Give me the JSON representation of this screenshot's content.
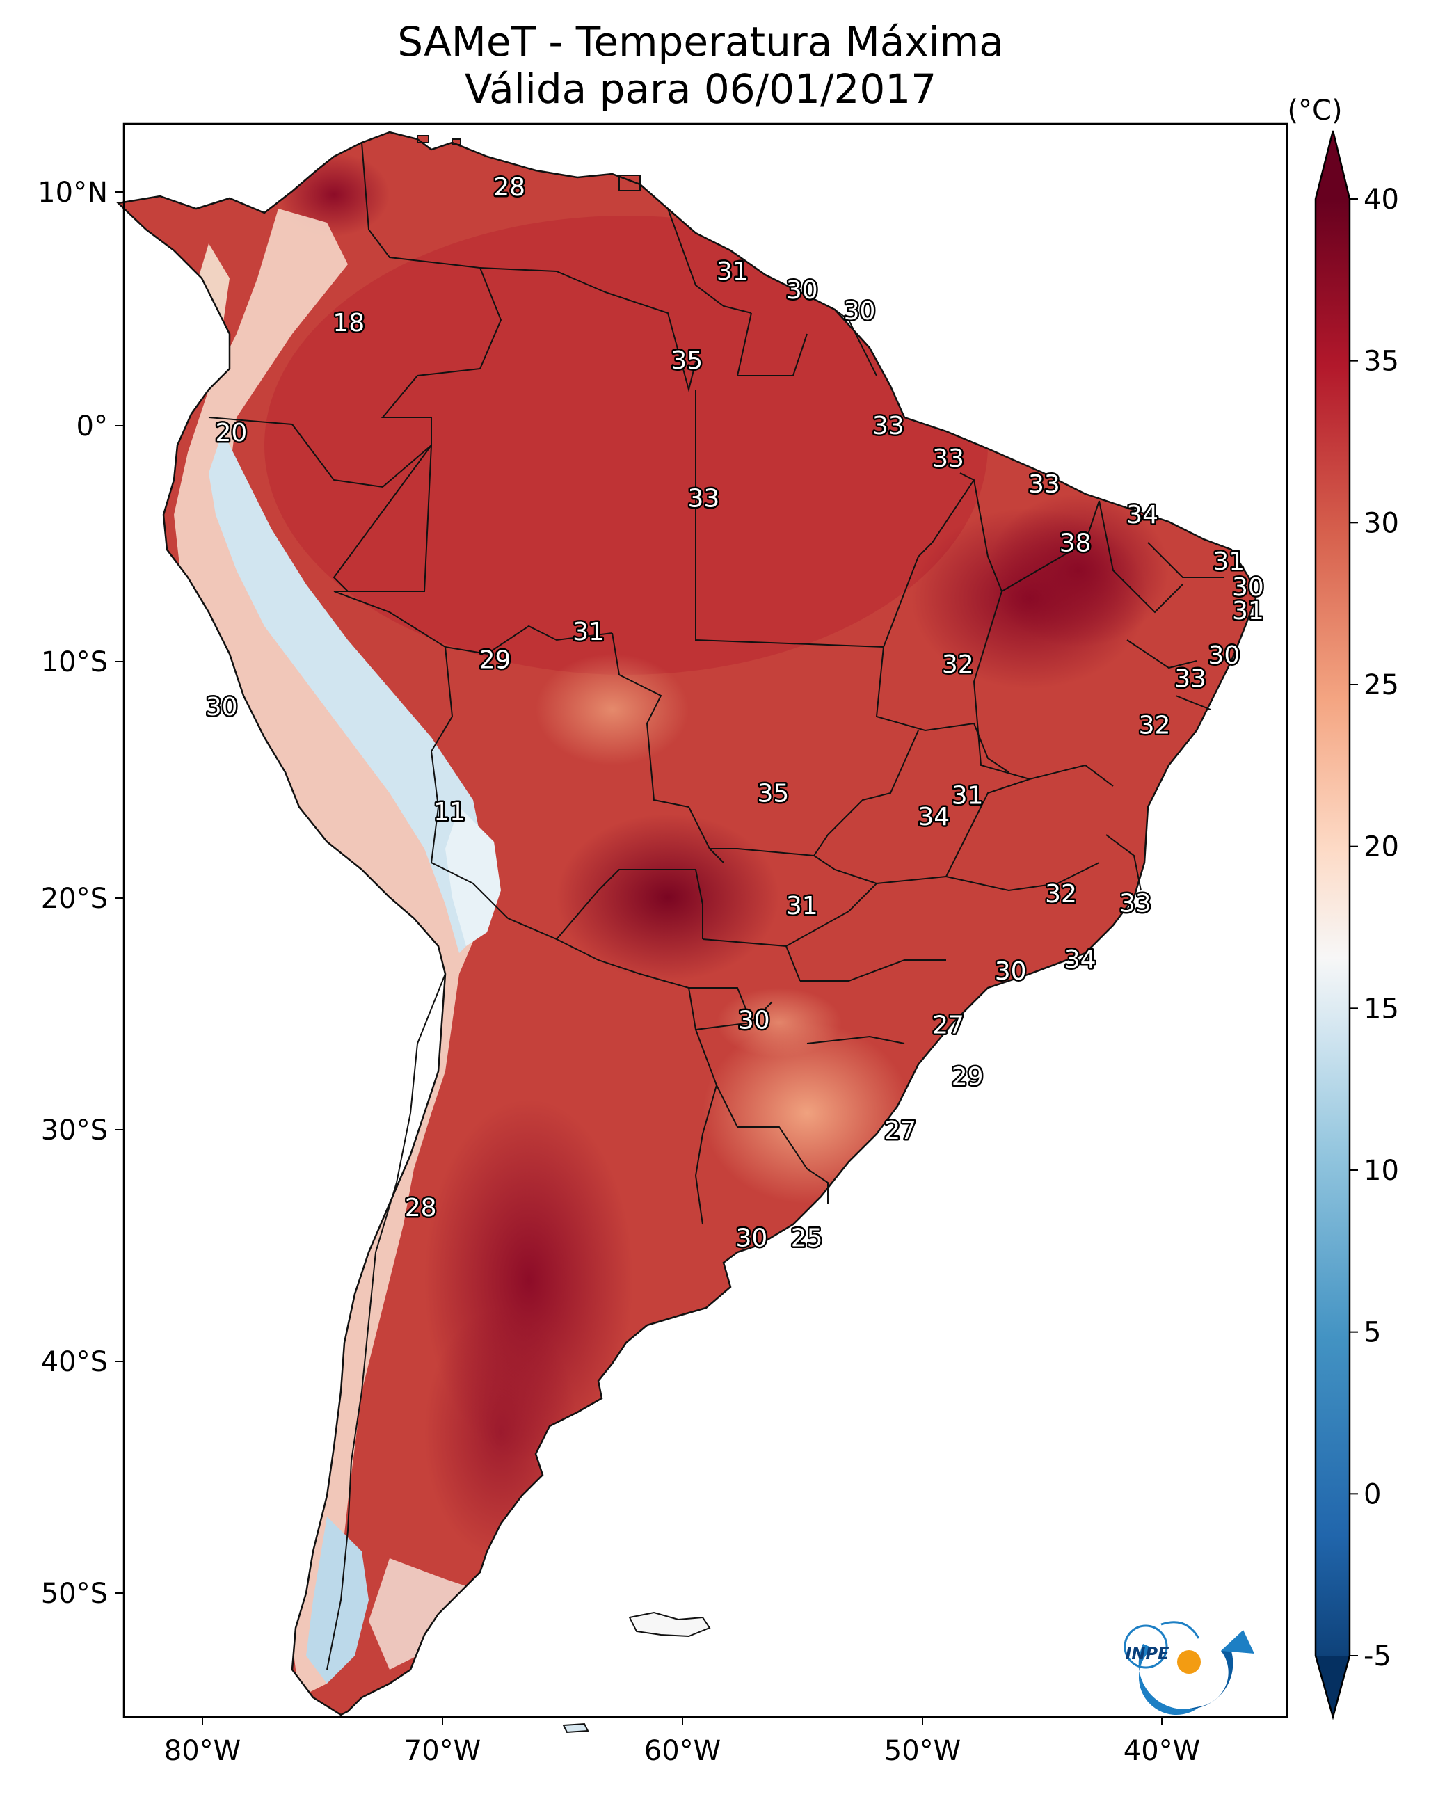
{
  "title": {
    "line1": "SAMeT - Temperatura Máxima",
    "line2": "Válida para 06/01/2017"
  },
  "axes": {
    "lon_ticks": [
      "80°W",
      "70°W",
      "60°W",
      "50°W",
      "40°W"
    ],
    "lat_ticks": [
      "10°N",
      "0°",
      "10°S",
      "20°S",
      "30°S",
      "40°S",
      "50°S"
    ]
  },
  "colorbar": {
    "unit": "(°C)",
    "ticks": [
      "40",
      "35",
      "30",
      "25",
      "20",
      "15",
      "10",
      "5",
      "0",
      "-5"
    ],
    "range": [
      -5,
      40
    ],
    "colors": {
      "hot": "#67001f",
      "warm": "#d6604d",
      "mild": "#f4a582",
      "neutral": "#f7f7f7",
      "cool": "#92c5de",
      "cold": "#2166ac",
      "cold_end": "#053061"
    }
  },
  "logo": {
    "text": "INPE",
    "icon": "inpe-logo-icon"
  },
  "temperature_labels": [
    {
      "value": "28",
      "lon": -67.2,
      "lat": 10.2
    },
    {
      "value": "31",
      "lon": -57.9,
      "lat": 6.6
    },
    {
      "value": "30",
      "lon": -55.0,
      "lat": 5.8
    },
    {
      "value": "30",
      "lon": -52.6,
      "lat": 4.9
    },
    {
      "value": "18",
      "lon": -73.9,
      "lat": 4.4
    },
    {
      "value": "35",
      "lon": -59.8,
      "lat": 2.8
    },
    {
      "value": "20",
      "lon": -78.8,
      "lat": -0.3
    },
    {
      "value": "33",
      "lon": -51.4,
      "lat": 0.0
    },
    {
      "value": "33",
      "lon": -48.9,
      "lat": -1.4
    },
    {
      "value": "33",
      "lon": -44.9,
      "lat": -2.5
    },
    {
      "value": "34",
      "lon": -40.8,
      "lat": -3.8
    },
    {
      "value": "33",
      "lon": -59.1,
      "lat": -3.1
    },
    {
      "value": "38",
      "lon": -43.6,
      "lat": -5.0
    },
    {
      "value": "31",
      "lon": -37.2,
      "lat": -5.8
    },
    {
      "value": "30",
      "lon": -36.4,
      "lat": -6.9
    },
    {
      "value": "31",
      "lon": -36.4,
      "lat": -7.9
    },
    {
      "value": "31",
      "lon": -63.9,
      "lat": -8.8
    },
    {
      "value": "29",
      "lon": -67.8,
      "lat": -10.0
    },
    {
      "value": "32",
      "lon": -48.5,
      "lat": -10.2
    },
    {
      "value": "30",
      "lon": -37.4,
      "lat": -9.8
    },
    {
      "value": "33",
      "lon": -38.8,
      "lat": -10.8
    },
    {
      "value": "30",
      "lon": -79.2,
      "lat": -12.0
    },
    {
      "value": "32",
      "lon": -40.3,
      "lat": -12.8
    },
    {
      "value": "35",
      "lon": -56.2,
      "lat": -15.7
    },
    {
      "value": "31",
      "lon": -48.1,
      "lat": -15.8
    },
    {
      "value": "34",
      "lon": -49.5,
      "lat": -16.7
    },
    {
      "value": "11",
      "lon": -69.7,
      "lat": -16.5
    },
    {
      "value": "32",
      "lon": -44.2,
      "lat": -20.0
    },
    {
      "value": "33",
      "lon": -41.1,
      "lat": -20.4
    },
    {
      "value": "31",
      "lon": -55.0,
      "lat": -20.5
    },
    {
      "value": "34",
      "lon": -43.4,
      "lat": -22.8
    },
    {
      "value": "30",
      "lon": -46.3,
      "lat": -23.3
    },
    {
      "value": "27",
      "lon": -48.9,
      "lat": -25.6
    },
    {
      "value": "30",
      "lon": -57.0,
      "lat": -25.4
    },
    {
      "value": "29",
      "lon": -48.1,
      "lat": -27.8
    },
    {
      "value": "27",
      "lon": -50.9,
      "lat": -30.1
    },
    {
      "value": "28",
      "lon": -70.9,
      "lat": -33.4
    },
    {
      "value": "30",
      "lon": -57.1,
      "lat": -34.7
    },
    {
      "value": "25",
      "lon": -54.8,
      "lat": -34.7
    }
  ]
}
